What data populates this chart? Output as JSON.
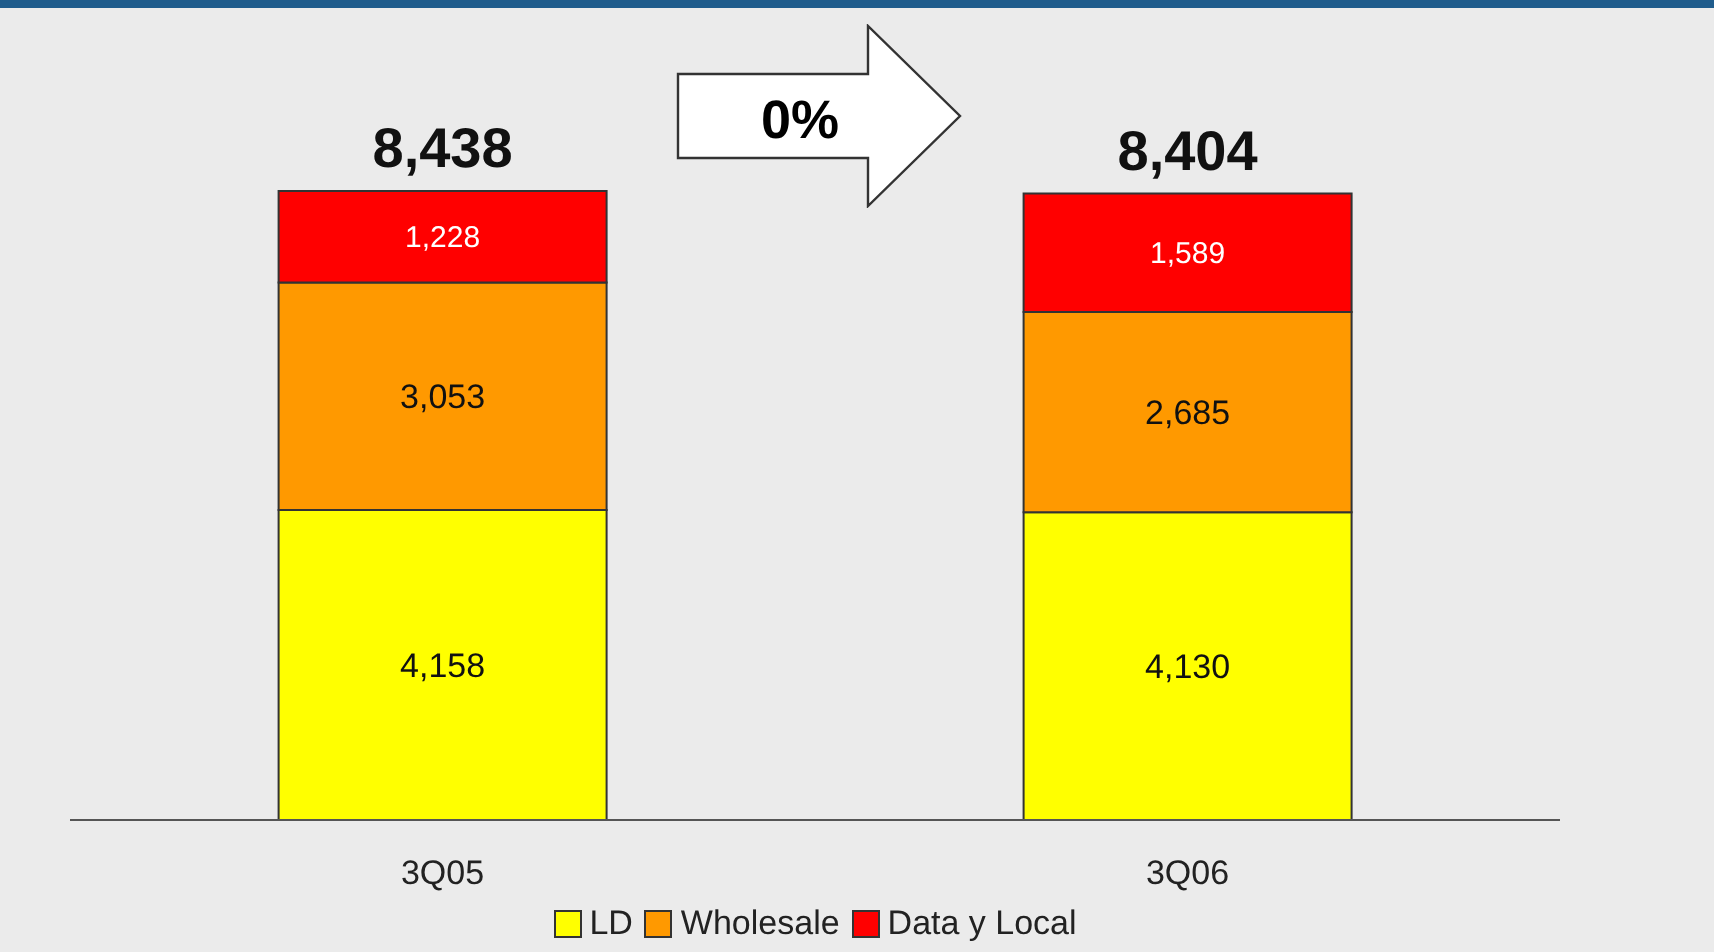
{
  "chart_data": {
    "type": "bar",
    "stacked": true,
    "categories": [
      "3Q05",
      "3Q06"
    ],
    "series": [
      {
        "name": "LD",
        "color": "#ffff00",
        "values": [
          4158,
          4130
        ],
        "value_labels": [
          "4,158",
          "4,130"
        ]
      },
      {
        "name": "Wholesale",
        "color": "#ff9900",
        "values": [
          3053,
          2685
        ],
        "value_labels": [
          "3,053",
          "2,685"
        ]
      },
      {
        "name": "Data y Local",
        "color": "#ff0000",
        "values": [
          1228,
          1589
        ],
        "value_labels": [
          "1,228",
          "1,589"
        ]
      }
    ],
    "totals": [
      "8,438",
      "8,404"
    ],
    "annotations": [
      "0%"
    ],
    "legend": "bottom",
    "grid": false
  }
}
